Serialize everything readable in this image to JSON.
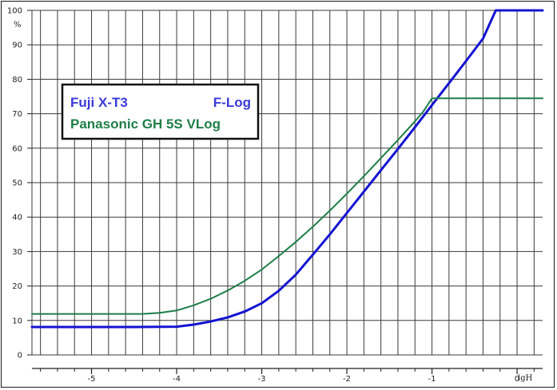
{
  "chart_data": {
    "type": "line",
    "title": "",
    "xlabel": "lgH",
    "ylabel": "%",
    "xlim": [
      -5.7,
      0.3
    ],
    "ylim": [
      0,
      100
    ],
    "x_ticks": [
      -5,
      -4,
      -3,
      -2,
      -1,
      0
    ],
    "x_tick_labels": [
      "-5",
      "-4",
      "-3",
      "-2",
      "-1",
      "0"
    ],
    "y_ticks": [
      0,
      10,
      20,
      30,
      40,
      50,
      60,
      70,
      80,
      90,
      100
    ],
    "y_tick_labels": [
      "0",
      "10",
      "20",
      "30",
      "40",
      "50",
      "60",
      "70",
      "80",
      "90",
      "100"
    ],
    "grid": true,
    "legend_position": "top-left",
    "legend": {
      "brand_blue": "Fuji X-T3",
      "curve_blue": "F-Log",
      "label_green": "Panasonic GH 5S VLog"
    },
    "series": [
      {
        "name": "Fuji X-T3 F-Log",
        "color": "#1414d2",
        "x": [
          -5.7,
          -4.5,
          -4.0,
          -3.8,
          -3.6,
          -3.4,
          -3.2,
          -3.0,
          -2.8,
          -2.6,
          -2.4,
          -2.2,
          -2.0,
          -1.8,
          -1.6,
          -1.4,
          -1.2,
          -1.0,
          -0.8,
          -0.6,
          -0.4,
          -0.25,
          0.3
        ],
        "y": [
          8.1,
          8.1,
          8.2,
          8.8,
          9.7,
          10.9,
          12.6,
          15.0,
          18.6,
          23.3,
          29.1,
          35.0,
          41.2,
          47.4,
          53.6,
          59.8,
          66.1,
          72.5,
          78.9,
          85.3,
          91.8,
          100,
          100
        ]
      },
      {
        "name": "Panasonic GH 5S VLog",
        "color": "#1e7e48",
        "x": [
          -5.7,
          -4.4,
          -4.2,
          -4.0,
          -3.8,
          -3.6,
          -3.4,
          -3.2,
          -3.0,
          -2.8,
          -2.6,
          -2.4,
          -2.2,
          -2.0,
          -1.8,
          -1.6,
          -1.4,
          -1.2,
          -1.1,
          -1.0,
          0.3
        ],
        "y": [
          11.9,
          11.9,
          12.2,
          12.9,
          14.4,
          16.3,
          18.7,
          21.5,
          24.8,
          28.7,
          32.8,
          37.2,
          41.9,
          46.8,
          51.9,
          57.1,
          62.4,
          67.8,
          70.7,
          74.5,
          74.5
        ]
      }
    ]
  }
}
